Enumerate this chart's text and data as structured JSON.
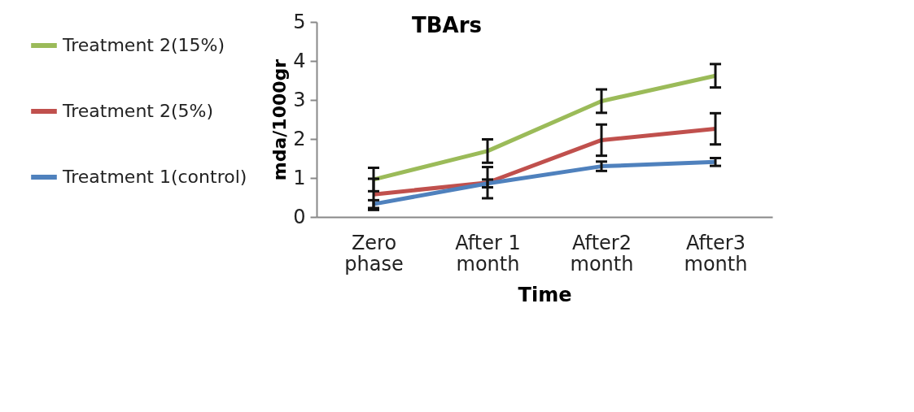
{
  "chart_data": {
    "type": "line",
    "title": "TBArs",
    "xlabel": "Time",
    "ylabel": "mda/1000gr",
    "categories": [
      "Zero phase",
      "After 1 month",
      "After2 month",
      "After3 month"
    ],
    "series": [
      {
        "name": "Treatment 2(15%)",
        "color": "#9bbb59",
        "values": [
          0.96,
          1.69,
          2.97,
          3.62
        ],
        "errors": [
          0.3,
          0.3,
          0.3,
          0.3
        ]
      },
      {
        "name": "Treatment 2(5%)",
        "color": "#c0504d",
        "values": [
          0.58,
          0.88,
          1.97,
          2.26
        ],
        "errors": [
          0.4,
          0.4,
          0.4,
          0.4
        ]
      },
      {
        "name": "Treatment 1(control)",
        "color": "#4f81bd",
        "values": [
          0.33,
          0.86,
          1.3,
          1.41
        ],
        "errors": [
          0.1,
          0.1,
          0.12,
          0.1
        ]
      }
    ],
    "ylim": [
      0,
      5
    ],
    "yticks": [
      0,
      1,
      2,
      3,
      4,
      5
    ],
    "grid": false,
    "legend": "left",
    "marker": "none",
    "line_style": "solid"
  }
}
